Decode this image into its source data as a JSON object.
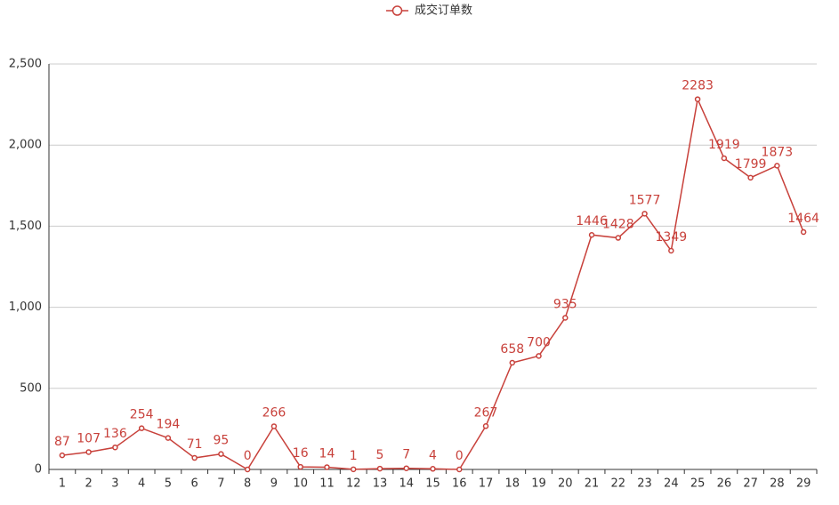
{
  "chart_data": {
    "type": "line",
    "categories": [
      "1",
      "2",
      "3",
      "4",
      "5",
      "6",
      "7",
      "8",
      "9",
      "10",
      "11",
      "12",
      "13",
      "14",
      "15",
      "16",
      "17",
      "18",
      "19",
      "20",
      "21",
      "22",
      "23",
      "24",
      "25",
      "26",
      "27",
      "28",
      "29"
    ],
    "series": [
      {
        "name": "成交订单数",
        "color": "#c8413b",
        "values": [
          87,
          107,
          136,
          254,
          194,
          71,
          95,
          0,
          266,
          16,
          14,
          1,
          5,
          7,
          4,
          0,
          267,
          658,
          700,
          935,
          1446,
          1428,
          1577,
          1349,
          2283,
          1919,
          1799,
          1873,
          1464
        ]
      }
    ],
    "ylim": [
      0,
      2500
    ],
    "yticks": [
      0,
      500,
      {
        "value": 1000,
        "label": "1,000"
      },
      {
        "value": 1500,
        "label": "1,500"
      },
      {
        "value": 2000,
        "label": "2,000"
      },
      {
        "value": 2500,
        "label": "2,500"
      }
    ],
    "grid": true,
    "legend": "top"
  }
}
